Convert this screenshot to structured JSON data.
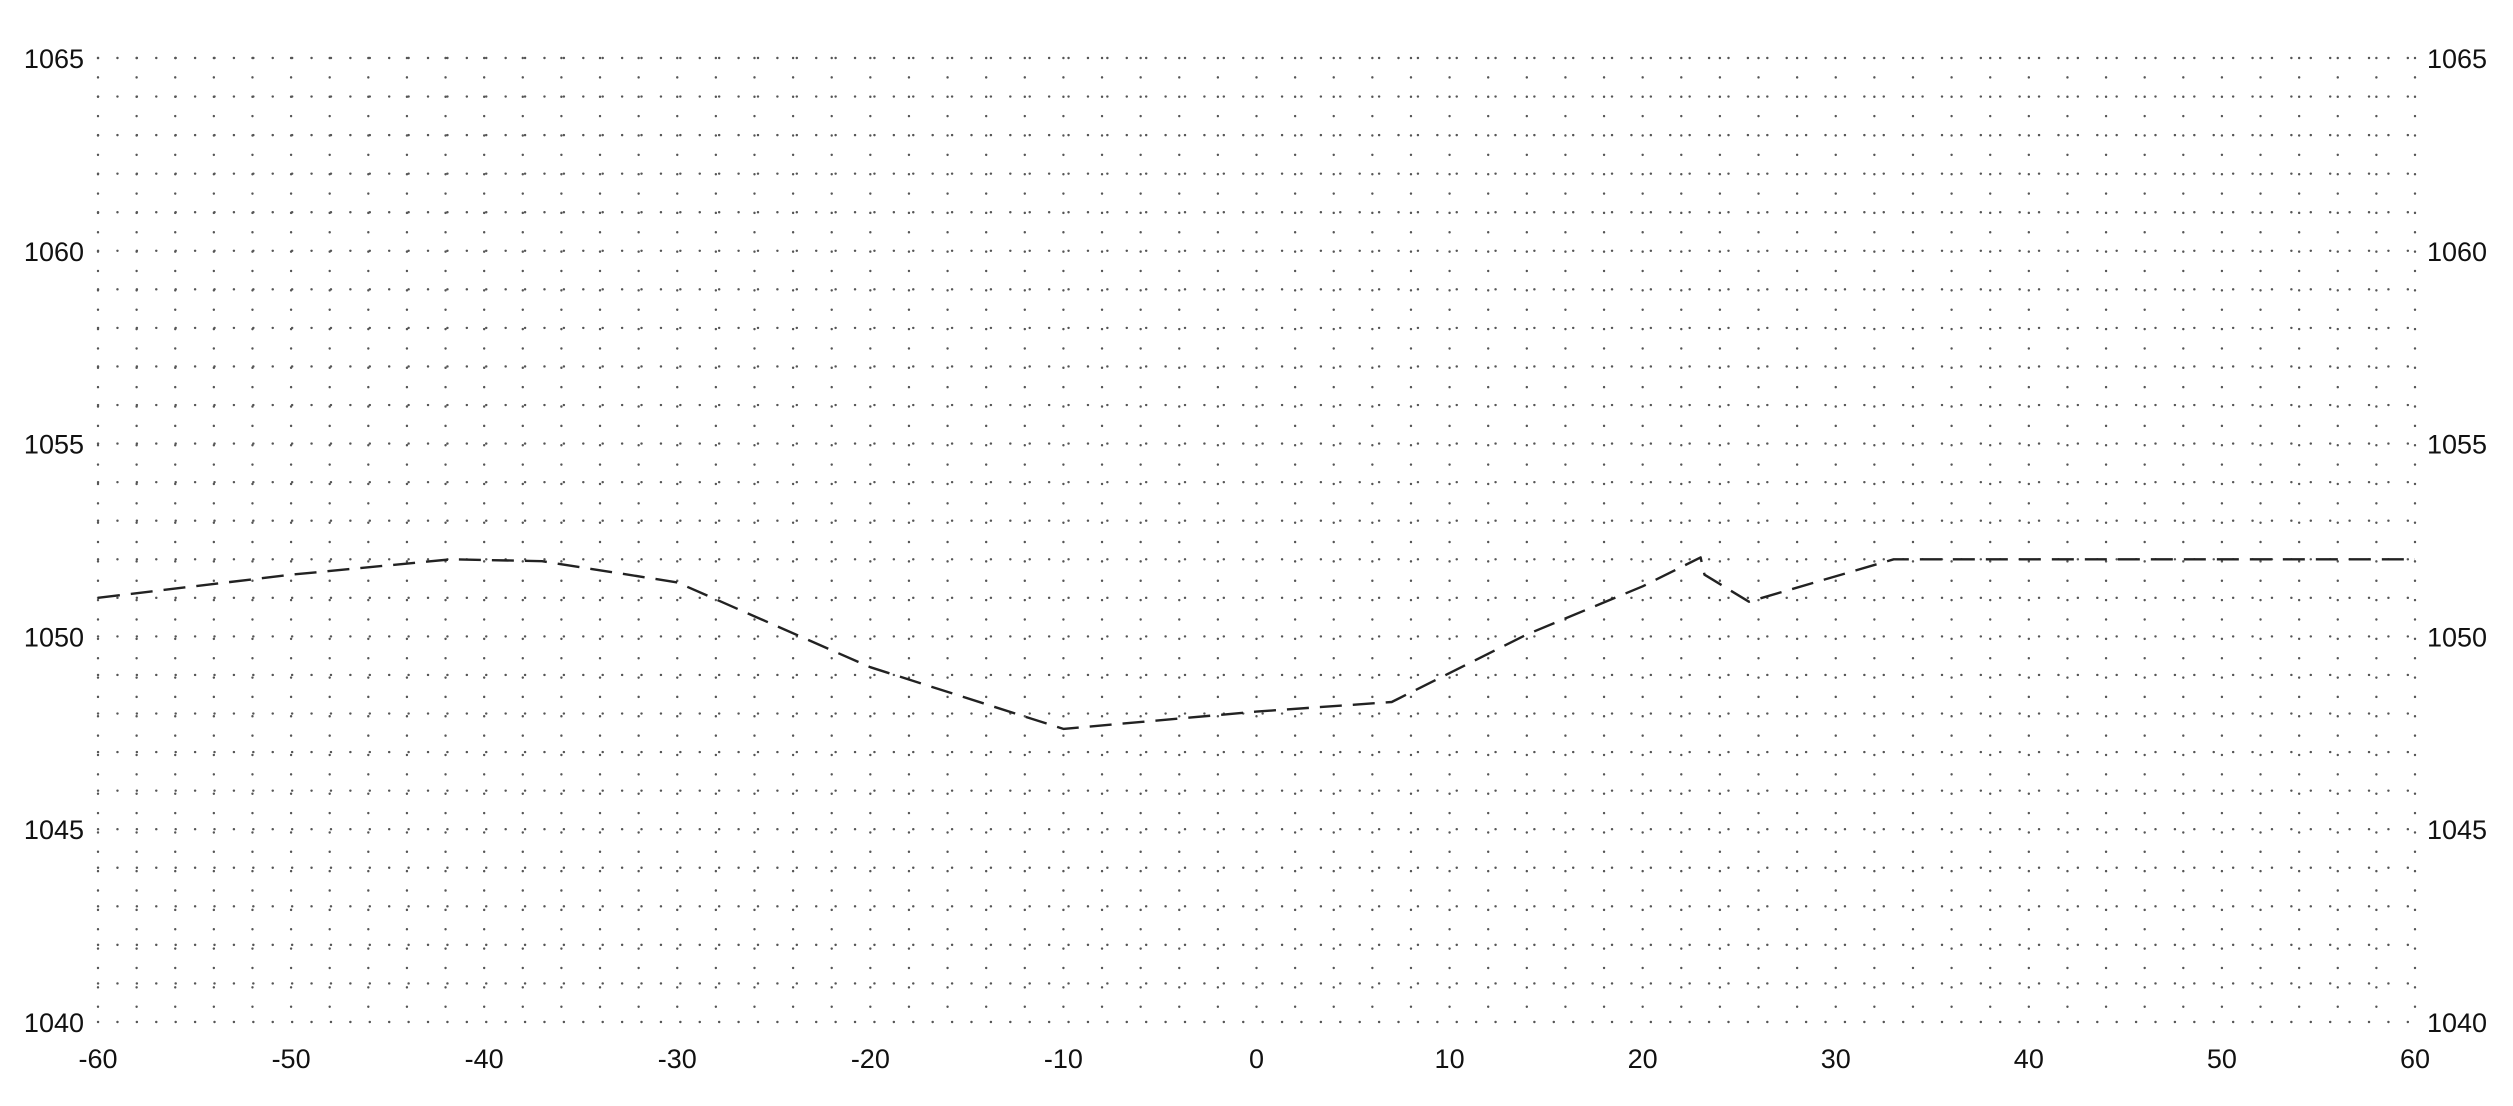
{
  "chart_data": {
    "type": "line",
    "title": "",
    "xlabel": "",
    "ylabel": "",
    "xlim": [
      -60,
      60
    ],
    "ylim": [
      1040,
      1065
    ],
    "x_major_ticks": [
      -60,
      -50,
      -40,
      -30,
      -20,
      -10,
      0,
      10,
      20,
      30,
      40,
      50,
      60
    ],
    "x_tick_labels": [
      "-60",
      "-50",
      "-40",
      "-30",
      "-20",
      "-10",
      "0",
      "10",
      "20",
      "30",
      "40",
      "50",
      "60"
    ],
    "x_minor_step": 2,
    "y_major_ticks": [
      1040,
      1045,
      1050,
      1055,
      1060,
      1065
    ],
    "y_tick_labels_left": [
      "1040",
      "1045",
      "1050",
      "1055",
      "1060",
      "1065"
    ],
    "y_tick_labels_right": [
      "1040",
      "1045",
      "1050",
      "1055",
      "1060",
      "1065"
    ],
    "y_minor_step": 1,
    "grid": true,
    "grid_style": "dotted",
    "line_style": "dashed",
    "line_color": "#222222",
    "grid_color": "#555555",
    "series": [
      {
        "x": [
          -60,
          -50,
          -41.7,
          -37,
          -30,
          -25,
          -20,
          -10,
          0,
          7,
          14,
          20,
          23,
          23.2,
          25.5,
          33,
          40,
          50,
          60
        ],
        "y": [
          1051.0,
          1051.6,
          1052.0,
          1051.95,
          1051.4,
          1050.3,
          1049.2,
          1047.6,
          1048.05,
          1048.3,
          1050.05,
          1051.3,
          1052.05,
          1051.6,
          1050.9,
          1052.0,
          1052.0,
          1052.0,
          1052.0
        ]
      }
    ]
  }
}
